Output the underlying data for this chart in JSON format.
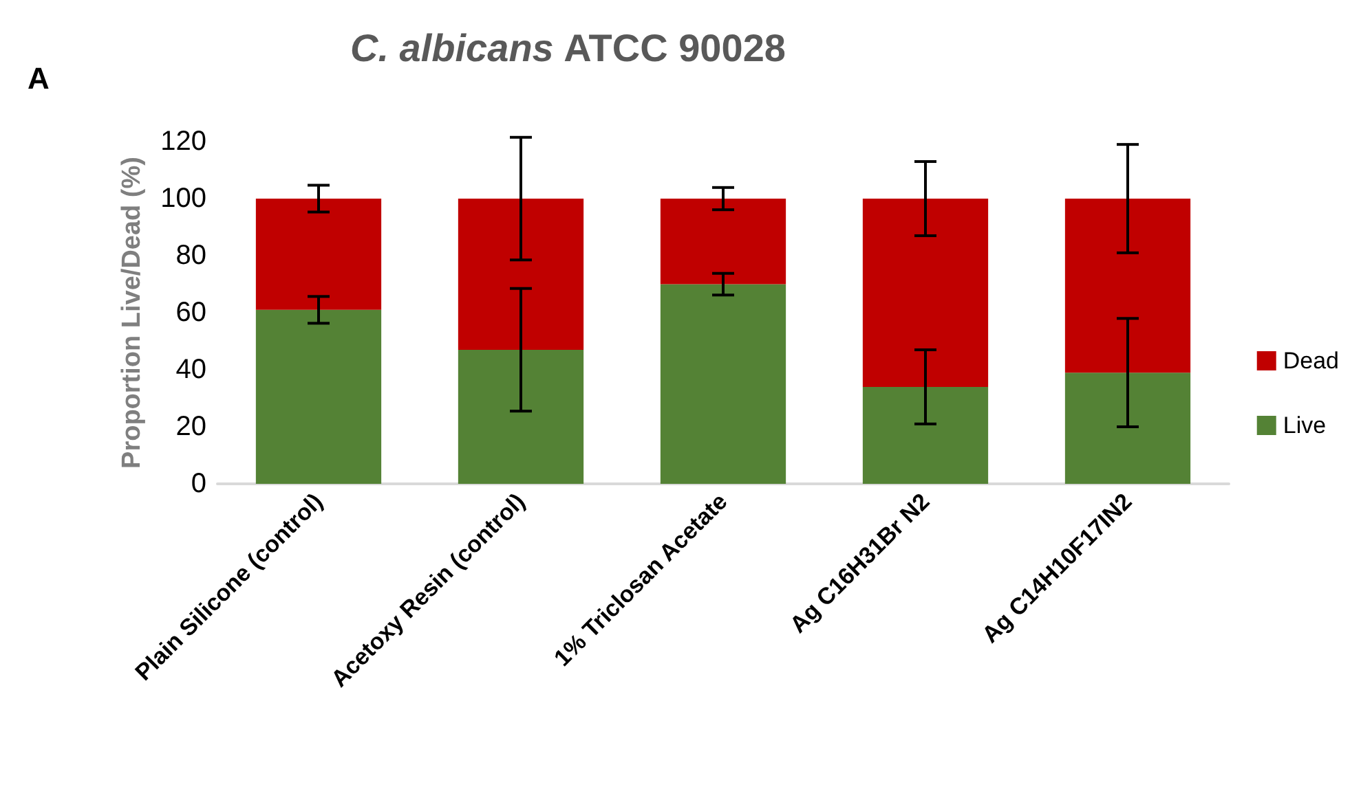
{
  "chart_data": {
    "type": "bar",
    "title": "C. albicans ATCC 90028",
    "ylabel": "Proportion Live/Dead (%)",
    "annotations": [
      "A"
    ],
    "categories": [
      "Plain Silicone (control)",
      "Acetoxy Resin (control)",
      "1% Triclosan Acetate",
      "Ag C16H31Br N2",
      "Ag C14H10F17IN2"
    ],
    "stacked": true,
    "series": [
      {
        "name": "Live",
        "color": "#548235",
        "values": [
          61,
          47,
          70,
          34,
          39
        ],
        "errors": [
          4.7,
          21.5,
          3.8,
          13,
          19
        ]
      },
      {
        "name": "Dead",
        "color": "#c00000",
        "values": [
          39,
          53,
          30,
          66,
          61
        ],
        "errors": [
          4.7,
          21.5,
          3.9,
          13,
          19
        ]
      }
    ],
    "ylim": [
      0,
      120
    ],
    "yticks": [
      0,
      20,
      40,
      60,
      80,
      100,
      120
    ],
    "grid": false,
    "legend": "right"
  }
}
